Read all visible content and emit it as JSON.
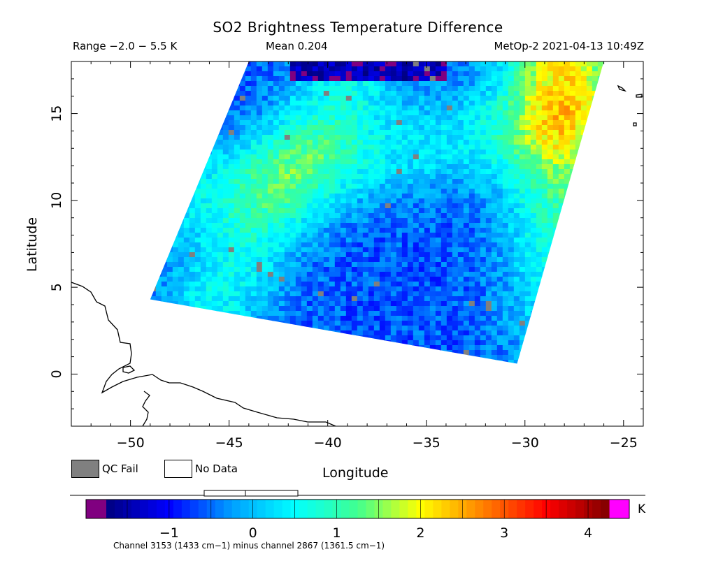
{
  "chart_data": {
    "type": "heatmap",
    "title": "SO2 Brightness Temperature Difference",
    "range_text": "Range −2.0 − 5.5 K",
    "mean_text": "Mean 0.204",
    "source_text": "MetOp-2 2021-04-13 10:49Z",
    "xlabel": "Longitude",
    "ylabel": "Latitude",
    "xlim": [
      -53,
      -24
    ],
    "ylim": [
      -3,
      18
    ],
    "x_ticks": [
      -50,
      -45,
      -40,
      -35,
      -30,
      -25
    ],
    "x_tick_labels": [
      "−50",
      "−45",
      "−40",
      "−35",
      "−30",
      "−25"
    ],
    "y_ticks": [
      0,
      5,
      10,
      15
    ],
    "y_tick_labels": [
      "0",
      "5",
      "10",
      "15"
    ],
    "swath_corners_lon_lat": [
      [
        -44.0,
        18.0
      ],
      [
        -26.0,
        18.0
      ],
      [
        -30.4,
        0.6
      ],
      [
        -49.0,
        4.3
      ]
    ],
    "colorbar": {
      "unit": "K",
      "range": [
        -1.75,
        4.25
      ],
      "tick_values": [
        -1,
        0,
        1,
        2,
        3,
        4
      ],
      "tick_labels": [
        "−1",
        "0",
        "1",
        "2",
        "3",
        "4"
      ],
      "colors": [
        "#000080",
        "#0000ff",
        "#00a0ff",
        "#00ffff",
        "#40ff90",
        "#ffff00",
        "#ff8000",
        "#ff0000",
        "#800000"
      ],
      "underflow_color": "#800080",
      "overflow_color": "#ff00ff"
    },
    "legend": {
      "qc_fail_label": "QC Fail",
      "qc_fail_color": "#808080",
      "no_data_label": "No Data",
      "no_data_color": "#ffffff"
    },
    "footnote": "Channel 3153 (1433 cm−1) minus channel 2867 (1361.5 cm−1)"
  }
}
